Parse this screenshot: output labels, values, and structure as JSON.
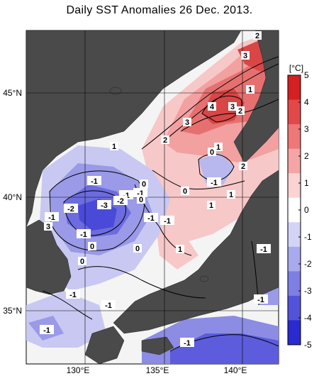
{
  "title": "Daily SST Anomalies 26 Dec. 2013.",
  "map": {
    "lon_labels": [
      "130°E",
      "135°E",
      "140°E"
    ],
    "lat_labels": [
      "45°N",
      "40°N",
      "35°N"
    ],
    "contour_labels": [
      "2",
      "3",
      "1",
      "4",
      "3",
      "2",
      "3",
      "2",
      "1",
      "0",
      "1",
      "-1",
      "-1",
      "2",
      "1",
      "-1",
      "0",
      "-1",
      "0",
      "-3",
      "-2",
      "-1",
      "0",
      "-2",
      "-1",
      "1",
      "-1",
      "3",
      "-1",
      "0",
      "0",
      "1",
      "0",
      "-1",
      "-1",
      "-1",
      "-1",
      "-1",
      "-1"
    ]
  },
  "colorbar": {
    "unit_label": "[°C]",
    "tick_labels": [
      "5",
      "4",
      "3",
      "2",
      "1",
      "0",
      "-1",
      "-2",
      "-3",
      "-4",
      "-5"
    ],
    "colors": [
      "#d42020",
      "#e34848",
      "#ee7777",
      "#f5a5a5",
      "#fbd3d3",
      "#ffffff",
      "#d3d3f7",
      "#a9a9ee",
      "#7e7ee4",
      "#5353da",
      "#2a2ad0"
    ]
  },
  "colors": {
    "land": "#4a4a4a",
    "warm_strong": "#e55050",
    "warm_light": "#f7c8c8",
    "cool_strong": "#5a5ae0",
    "cool_light": "#c8c8f2"
  }
}
